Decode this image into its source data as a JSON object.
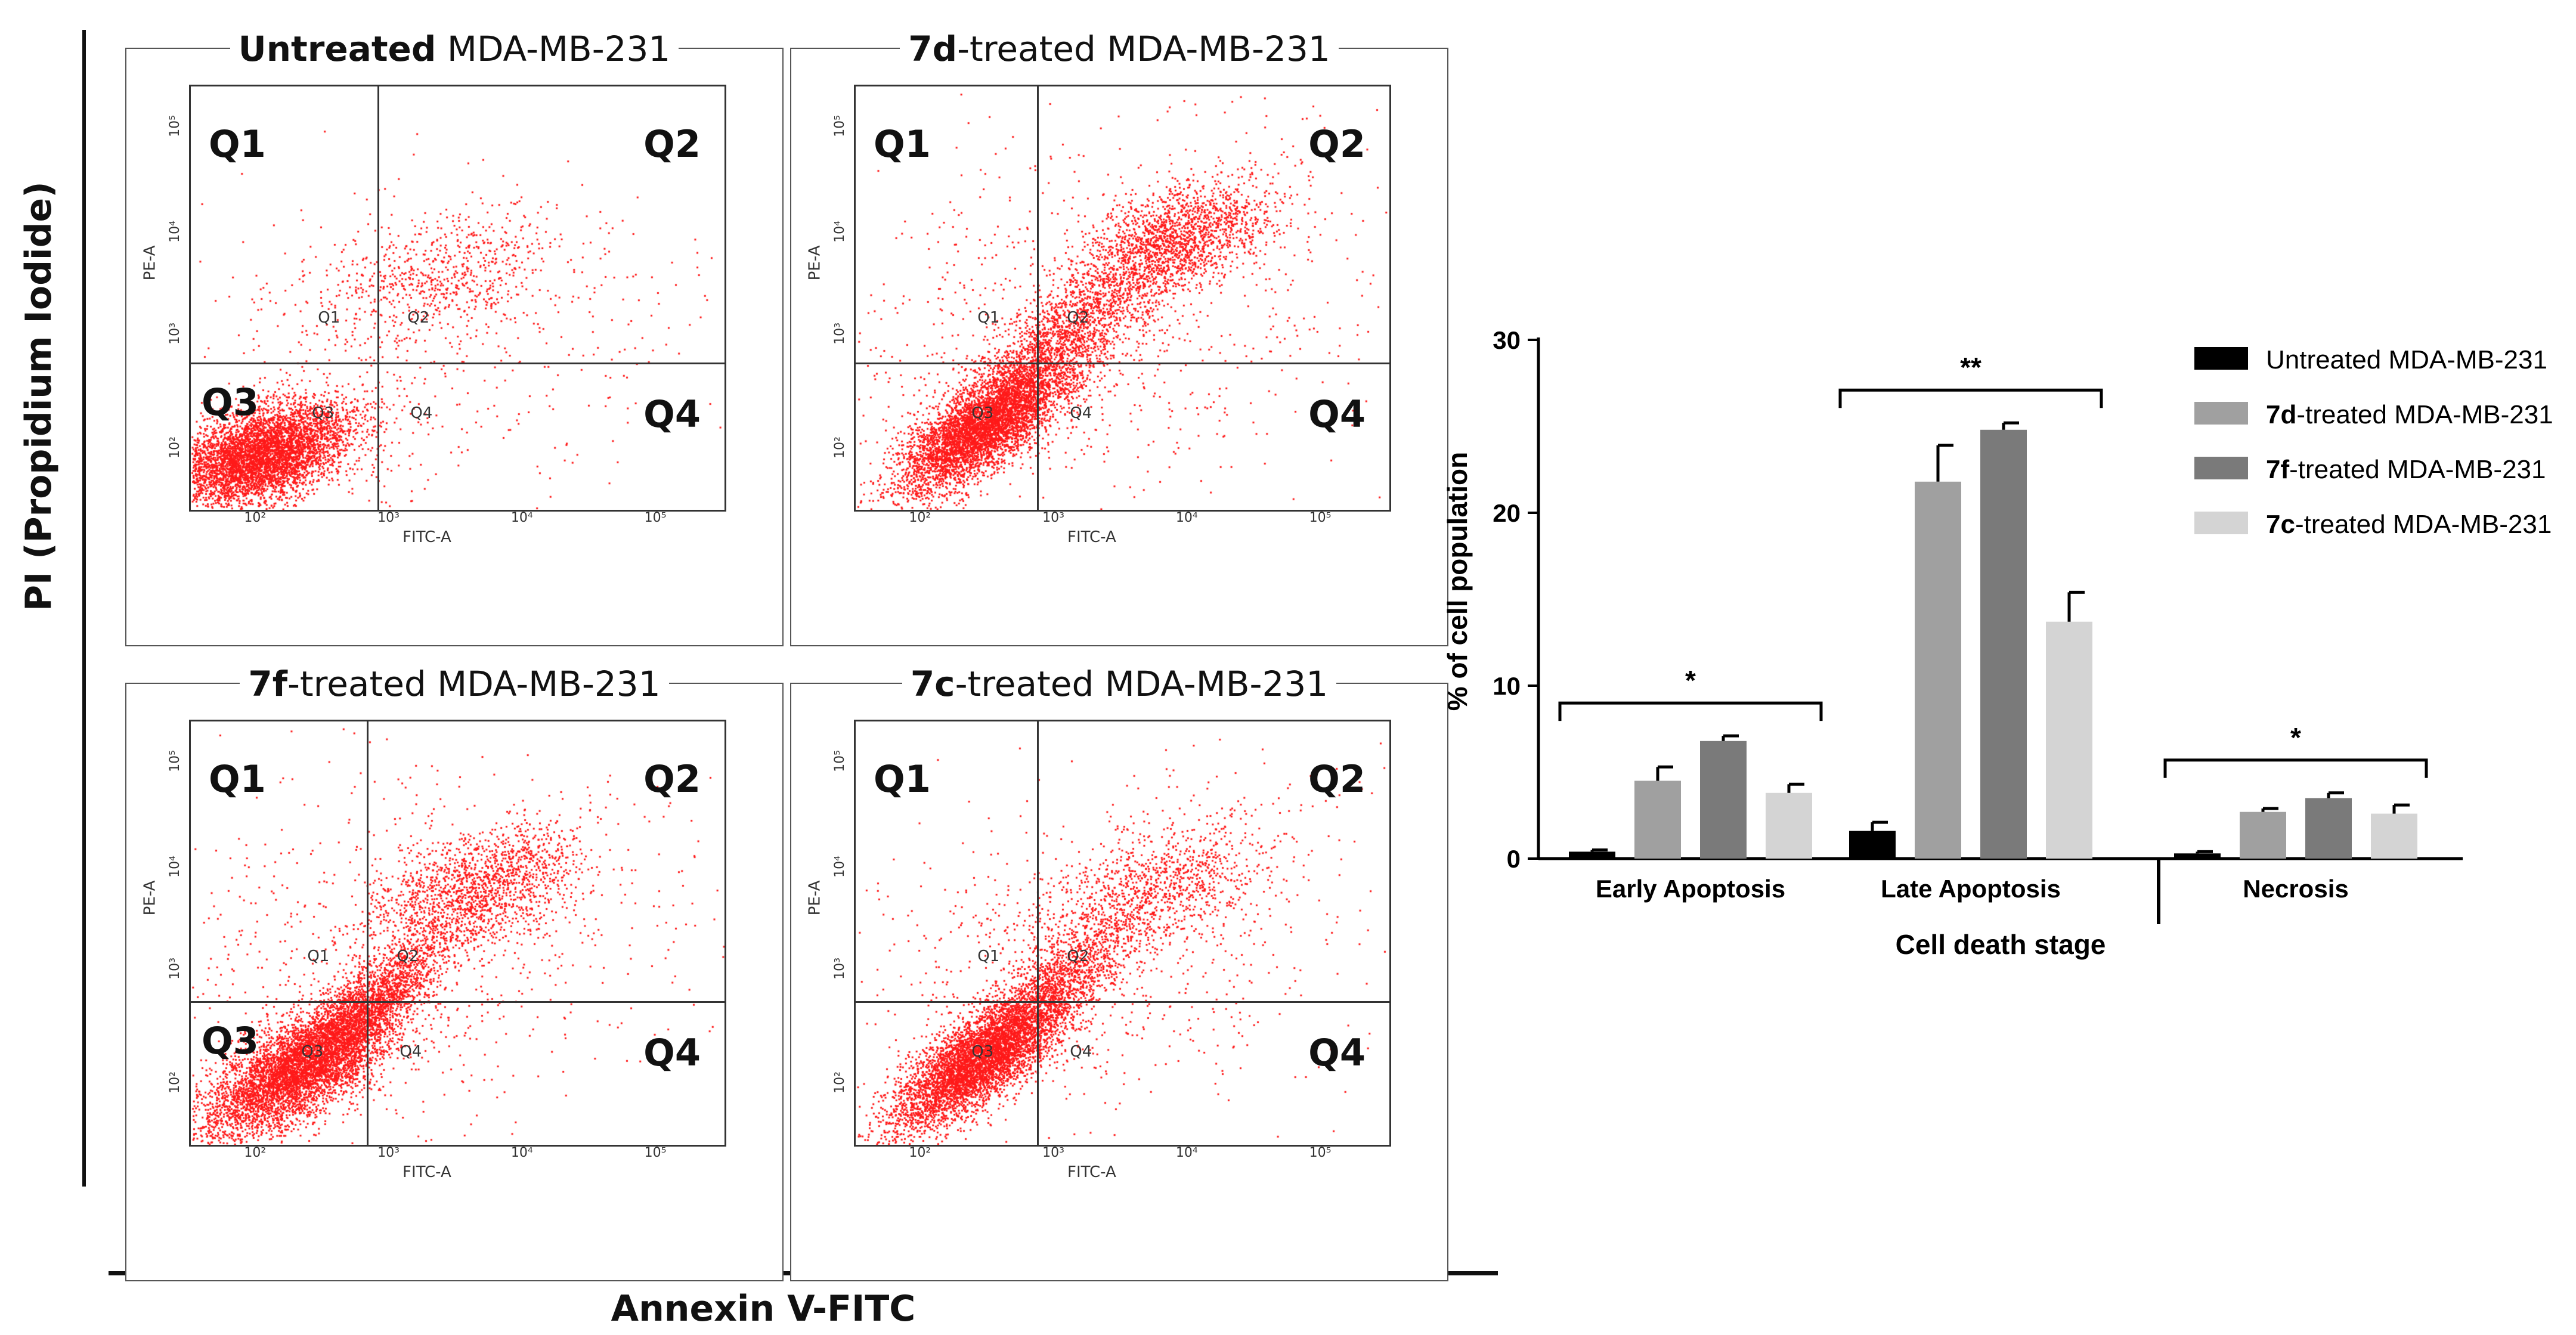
{
  "flow_panels": [
    {
      "title_bold": "Untreated",
      "title_rest": " MDA-MB-231",
      "q1": "Q1",
      "q2": "Q2",
      "q3": "Q3",
      "q4": "Q4",
      "gate_q1": "Q1",
      "gate_q2": "Q2",
      "gate_q3": "Q3",
      "gate_q4": "Q4",
      "xaxis": "FITC-A",
      "yaxis": "PE-A",
      "xticks": [
        "10²",
        "10³",
        "10⁴",
        "10⁵"
      ],
      "yticks": [
        "10²",
        "10³",
        "10⁴",
        "10⁵"
      ]
    },
    {
      "title_bold": "7d",
      "title_rest": "-treated MDA-MB-231",
      "q1": "Q1",
      "q2": "Q2",
      "q3": "",
      "q4": "Q4",
      "gate_q1": "Q1",
      "gate_q2": "Q2",
      "gate_q3": "Q3",
      "gate_q4": "Q4",
      "xaxis": "FITC-A",
      "yaxis": "PE-A",
      "xticks": [
        "10²",
        "10³",
        "10⁴",
        "10⁵"
      ],
      "yticks": [
        "10²",
        "10³",
        "10⁴",
        "10⁵"
      ]
    },
    {
      "title_bold": "7f",
      "title_rest": "-treated MDA-MB-231",
      "q1": "Q1",
      "q2": "Q2",
      "q3": "Q3",
      "q4": "Q4",
      "gate_q1": "Q1",
      "gate_q2": "Q2",
      "gate_q3": "Q3",
      "gate_q4": "Q4",
      "xaxis": "FITC-A",
      "yaxis": "PE-A",
      "xticks": [
        "10²",
        "10³",
        "10⁴",
        "10⁵"
      ],
      "yticks": [
        "10²",
        "10³",
        "10⁴",
        "10⁵"
      ]
    },
    {
      "title_bold": "7c",
      "title_rest": "-treated MDA-MB-231",
      "q1": "Q1",
      "q2": "Q2",
      "q3": "",
      "q4": "Q4",
      "gate_q1": "Q1",
      "gate_q2": "Q2",
      "gate_q3": "Q3",
      "gate_q4": "Q4",
      "xaxis": "FITC-A",
      "yaxis": "PE-A",
      "xticks": [
        "10²",
        "10³",
        "10⁴",
        "10⁵"
      ],
      "yticks": [
        "10²",
        "10³",
        "10⁴",
        "10⁵"
      ]
    }
  ],
  "figure": {
    "y_axis_label": "PI (Propidium Iodide)",
    "x_axis_label": "Annexin V-FITC"
  },
  "colors": {
    "dots": "#ff1a1a"
  },
  "chart_data": {
    "type": "bar",
    "title": "",
    "xlabel": "Cell death stage",
    "ylabel": "% of cell population",
    "ylim": [
      0,
      30
    ],
    "yticks": [
      "0",
      "10",
      "20",
      "30"
    ],
    "categories": [
      "Early Apoptosis",
      "Late Apoptosis",
      "Necrosis"
    ],
    "series": [
      {
        "name_bold": "",
        "name_rest": "Untreated MDA-MB-231",
        "color": "#000000",
        "values": [
          0.4,
          1.6,
          0.3
        ],
        "errors": [
          0.1,
          0.5,
          0.1
        ]
      },
      {
        "name_bold": "7d",
        "name_rest": "-treated MDA-MB-231",
        "color": "#a0a0a0",
        "values": [
          4.5,
          21.8,
          2.7
        ],
        "errors": [
          0.8,
          2.1,
          0.2
        ]
      },
      {
        "name_bold": "7f",
        "name_rest": "-treated MDA-MB-231",
        "color": "#7a7a7a",
        "values": [
          6.8,
          24.8,
          3.5
        ],
        "errors": [
          0.3,
          0.4,
          0.3
        ]
      },
      {
        "name_bold": "7c",
        "name_rest": "-treated MDA-MB-231",
        "color": "#d4d4d4",
        "values": [
          3.8,
          13.7,
          2.6
        ],
        "errors": [
          0.5,
          1.7,
          0.5
        ]
      }
    ],
    "significance": [
      "*",
      "**",
      "*"
    ],
    "legend_position": "right"
  }
}
